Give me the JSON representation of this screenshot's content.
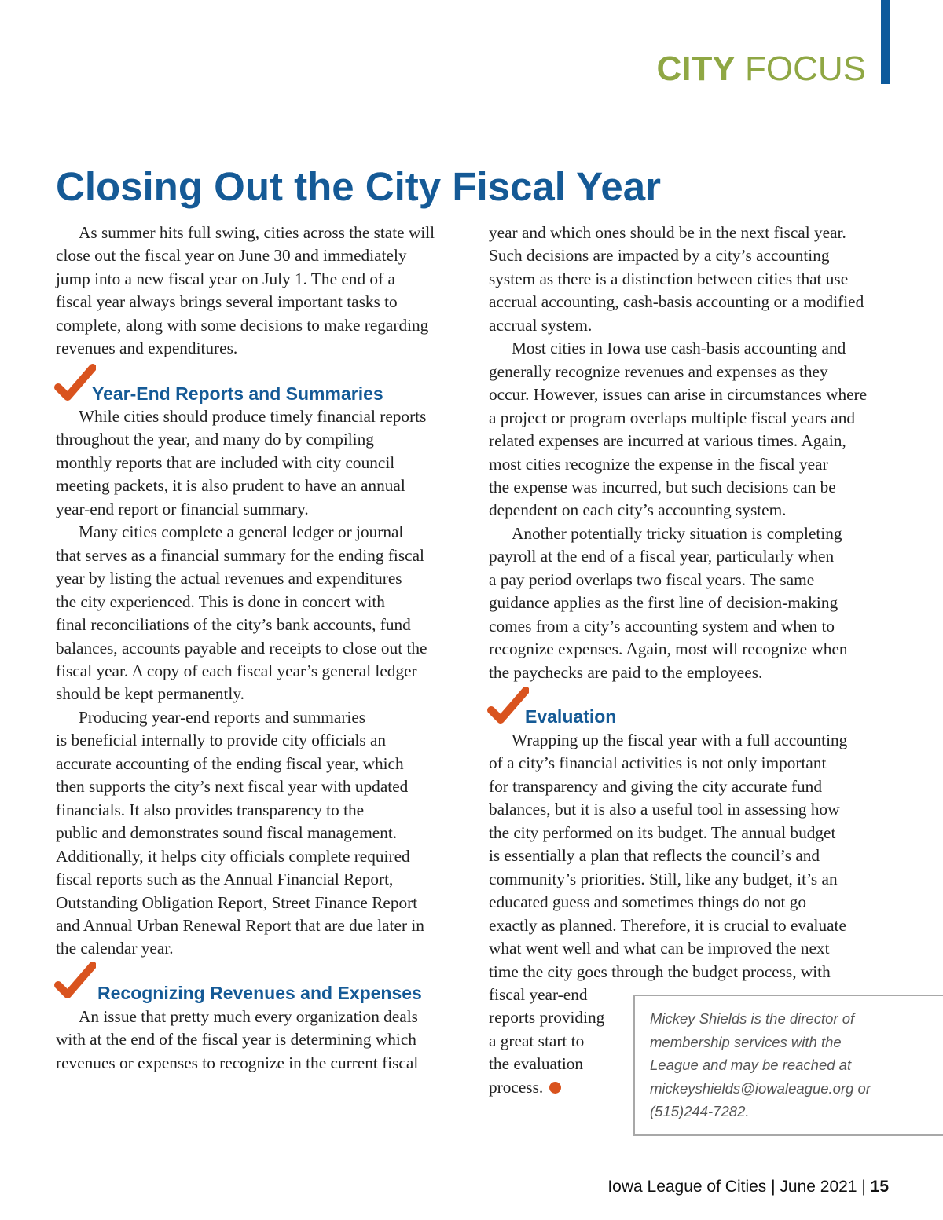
{
  "header": {
    "section_bold": "CITY",
    "section_light": "FOCUS",
    "accent_color": "#0d5a9c",
    "section_color": "#8fa744"
  },
  "title": "Closing Out the City Fiscal Year",
  "headings": {
    "year_end": "Year-End Reports and Summaries",
    "recognizing": "Recognizing Revenues and Expenses",
    "evaluation": "Evaluation",
    "icon": "orange-checkmark-icon",
    "icon_color": "#d9531e"
  },
  "body": {
    "intro": [
      {
        "indent": true,
        "lines": [
          "As summer hits full swing, cities across the state will",
          "close out the fiscal year on June 30 and immediately",
          "jump into a new fiscal year on July 1. The end of  a",
          "fiscal year always brings several important tasks to",
          "complete, along with some decisions to make regarding",
          "revenues and expenditures."
        ]
      }
    ],
    "year_end": [
      {
        "indent": true,
        "lines": [
          "While cities should produce timely financial reports",
          "throughout the year, and many do by compiling",
          "monthly reports that are included with city council",
          "meeting packets, it is also prudent to have an annual",
          "year-end report or financial summary."
        ]
      },
      {
        "indent": true,
        "lines": [
          "Many cities complete a general ledger or journal",
          "that serves as a financial summary for the ending fiscal",
          "year by listing the actual revenues and expenditures",
          "the city experienced. This is done in concert with",
          "final reconciliations of  the city’s bank accounts, fund",
          "balances, accounts payable and receipts to close out the",
          "fiscal year. A copy of  each fiscal year’s general ledger",
          "should be kept permanently."
        ]
      },
      {
        "indent": true,
        "lines": [
          "Producing year-end reports and summaries",
          "is beneficial internally to provide city officials an",
          "accurate accounting of  the ending fiscal year, which",
          "then supports the city’s next fiscal year with updated",
          "financials. It also provides transparency to the",
          "public and demonstrates sound fiscal management.",
          "Additionally, it helps city officials complete required",
          "fiscal reports such as the Annual Financial Report,",
          "Outstanding Obligation Report, Street Finance Report",
          "and Annual Urban Renewal Report that are due later in",
          "the calendar year."
        ]
      }
    ],
    "recognizing": [
      {
        "indent": true,
        "lines": [
          "An issue that pretty much every organization deals",
          "with at the end of  the fiscal year is determining which",
          "revenues or expenses to recognize in the current fiscal"
        ]
      }
    ],
    "recognizing_cont": [
      {
        "indent": false,
        "lines": [
          "year and which ones should be in the next fiscal year.",
          "Such decisions are impacted by a city’s accounting",
          "system as there is a distinction between cities that use",
          "accrual accounting, cash-basis accounting or a modified",
          "accrual system."
        ]
      },
      {
        "indent": true,
        "lines": [
          "Most cities in Iowa use cash-basis accounting and",
          "generally recognize revenues and expenses as they",
          "occur. However, issues can arise in circumstances where",
          "a project or program overlaps multiple fiscal years and",
          "related expenses are incurred at various times. Again,",
          "most cities recognize the expense in the fiscal year",
          "the expense was incurred, but such decisions can be",
          "dependent on each city’s accounting system."
        ]
      },
      {
        "indent": true,
        "lines": [
          "Another potentially tricky situation is completing",
          "payroll at the end of  a fiscal year, particularly when",
          "a pay period overlaps two fiscal years. The same",
          "guidance applies as the first line of  decision-making",
          "comes from a city’s accounting system and when to",
          "recognize expenses. Again, most will recognize when",
          "the paychecks are paid to the employees."
        ]
      }
    ],
    "evaluation": [
      {
        "indent": true,
        "lines": [
          "Wrapping up the fiscal year with a full accounting",
          "of  a city’s financial activities is not only important",
          "for transparency and giving the city accurate fund",
          "balances, but it is also a useful tool in assessing how",
          "the city performed on its budget. The annual budget",
          "is essentially a plan that reflects the council’s and",
          "community’s priorities. Still, like any budget, it’s an",
          "educated guess and sometimes things do not go",
          "exactly as planned. Therefore, it is crucial to evaluate",
          "what went well and what can be improved the next",
          "time the city goes through the budget process, with",
          "fiscal year-end",
          "reports providing",
          "a great start to",
          "the evaluation",
          "process."
        ]
      }
    ]
  },
  "bio": [
    "Mickey Shields is the director of",
    "membership services with the",
    "League and may be reached at",
    "mickeyshields@iowaleague.org or",
    "(515)244-7282."
  ],
  "footer": {
    "publication": "Iowa League of Cities | June 2021 | ",
    "page": "15"
  }
}
